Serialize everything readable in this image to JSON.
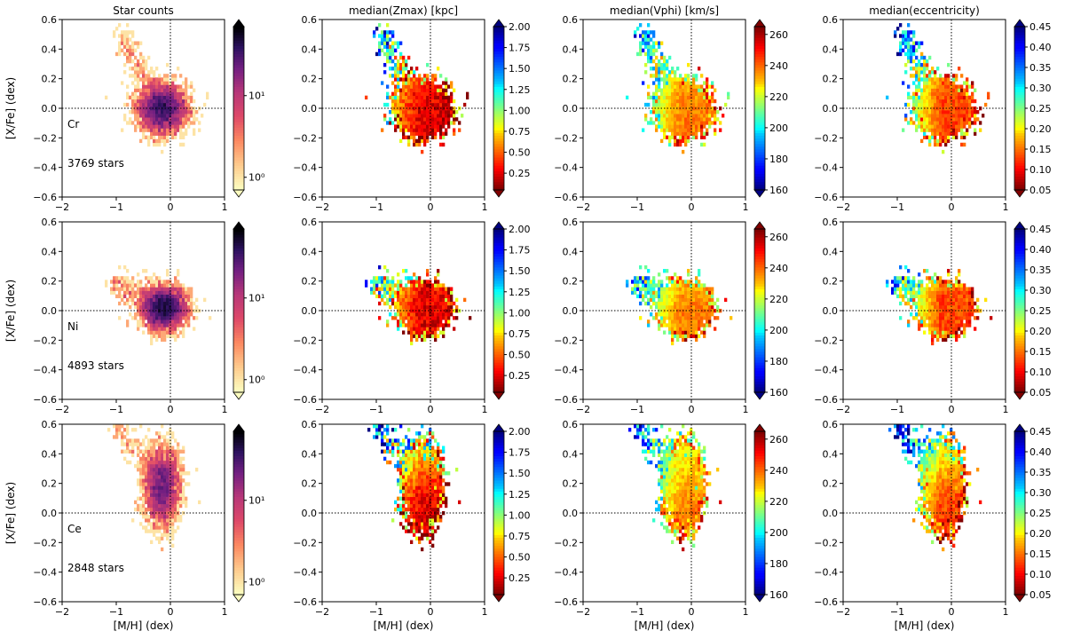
{
  "chart_data": {
    "type": "heatmap",
    "layout": "3 rows x 4 columns",
    "x_axis": {
      "label": "[M/H] (dex)",
      "range": [
        -2,
        1
      ],
      "ticks": [
        -2,
        -1,
        0,
        1
      ]
    },
    "y_axis": {
      "label": "[X/Fe] (dex)",
      "range": [
        -0.6,
        0.6
      ],
      "ticks": [
        -0.6,
        -0.4,
        -0.2,
        0.0,
        0.2,
        0.4,
        0.6
      ]
    },
    "reference_lines": {
      "x": 0,
      "y": 0,
      "style": "dotted"
    },
    "columns": [
      {
        "title": "Star counts",
        "colormap": "magma_r",
        "scale": "log",
        "cbar_ticks": [
          "10⁰",
          "10¹"
        ],
        "cbar_values": [
          1,
          10
        ],
        "cbar_range": [
          0.7,
          70
        ]
      },
      {
        "title": "median(Zmax) [kpc]",
        "colormap": "jet_r",
        "scale": "linear",
        "cbar_range": [
          0.05,
          2.0
        ],
        "cbar_ticks": [
          "2.00",
          "1.75",
          "1.50",
          "1.25",
          "1.00",
          "0.75",
          "0.50",
          "0.25"
        ],
        "cbar_values": [
          2.0,
          1.75,
          1.5,
          1.25,
          1.0,
          0.75,
          0.5,
          0.25
        ]
      },
      {
        "title": "median(Vphi) [km/s]",
        "colormap": "jet",
        "scale": "linear",
        "cbar_range": [
          160,
          265
        ],
        "cbar_ticks": [
          "260",
          "240",
          "220",
          "200",
          "180",
          "160"
        ],
        "cbar_values": [
          260,
          240,
          220,
          200,
          180,
          160
        ]
      },
      {
        "title": "median(eccentricity)",
        "colormap": "jet_r",
        "scale": "linear",
        "cbar_range": [
          0.05,
          0.45
        ],
        "cbar_ticks": [
          "0.45",
          "0.40",
          "0.35",
          "0.30",
          "0.25",
          "0.20",
          "0.15",
          "0.10",
          "0.05"
        ],
        "cbar_values": [
          0.45,
          0.4,
          0.35,
          0.3,
          0.25,
          0.2,
          0.15,
          0.1,
          0.05
        ]
      }
    ],
    "rows": [
      {
        "element": "Cr",
        "stars_label": "3769 stars",
        "n_stars": 3769,
        "center_mh": -0.15,
        "center_xfe": 0.0,
        "spread_mh": 0.22,
        "spread_xfe": 0.08,
        "tail_to": [
          -0.9,
          0.48
        ]
      },
      {
        "element": "Ni",
        "stars_label": "4893 stars",
        "n_stars": 4893,
        "center_mh": -0.12,
        "center_xfe": 0.02,
        "spread_mh": 0.2,
        "spread_xfe": 0.07,
        "tail_to": [
          -1.05,
          0.18
        ]
      },
      {
        "element": "Ce",
        "stars_label": "2848 stars",
        "n_stars": 2848,
        "center_mh": -0.15,
        "center_xfe": 0.18,
        "spread_mh": 0.16,
        "spread_xfe": 0.13,
        "tail_to": [
          -1.0,
          0.58
        ]
      }
    ]
  }
}
